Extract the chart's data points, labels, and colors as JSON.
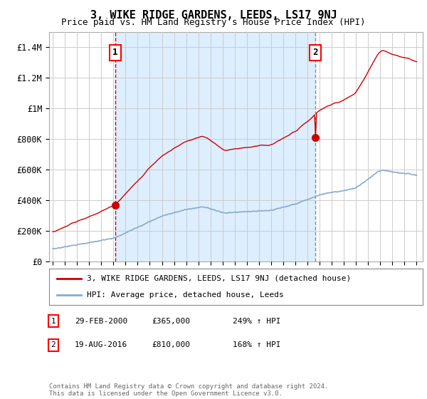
{
  "title": "3, WIKE RIDGE GARDENS, LEEDS, LS17 9NJ",
  "subtitle": "Price paid vs. HM Land Registry's House Price Index (HPI)",
  "title_fontsize": 11,
  "subtitle_fontsize": 9,
  "background_color": "#ffffff",
  "plot_bg_color": "#ffffff",
  "shade_color": "#ddeeff",
  "grid_color": "#cccccc",
  "red_color": "#cc0000",
  "blue_color": "#88aacc",
  "vline1_color": "#cc0000",
  "vline2_color": "#888888",
  "ylim": [
    0,
    1500000
  ],
  "yticks": [
    0,
    200000,
    400000,
    600000,
    800000,
    1000000,
    1200000,
    1400000
  ],
  "ytick_labels": [
    "£0",
    "£200K",
    "£400K",
    "£600K",
    "£800K",
    "£1M",
    "£1.2M",
    "£1.4M"
  ],
  "xmin": 1994.7,
  "xmax": 2025.5,
  "sale1_x": 2000.15,
  "sale1_y": 365000,
  "sale2_x": 2016.63,
  "sale2_y": 810000,
  "legend_line1": "3, WIKE RIDGE GARDENS, LEEDS, LS17 9NJ (detached house)",
  "legend_line2": "HPI: Average price, detached house, Leeds",
  "table_rows": [
    [
      "1",
      "29-FEB-2000",
      "£365,000",
      "249% ↑ HPI"
    ],
    [
      "2",
      "19-AUG-2016",
      "£810,000",
      "168% ↑ HPI"
    ]
  ],
  "footnote": "Contains HM Land Registry data © Crown copyright and database right 2024.\nThis data is licensed under the Open Government Licence v3.0."
}
